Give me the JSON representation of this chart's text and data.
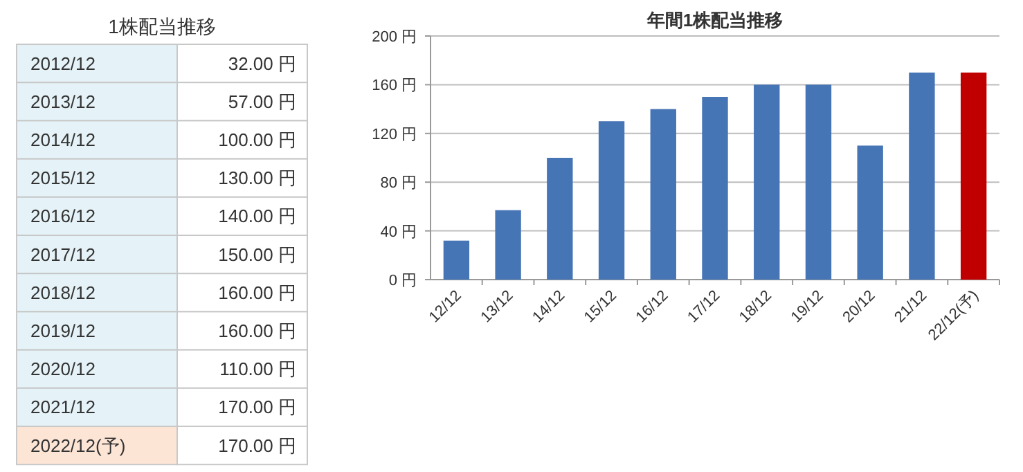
{
  "chart_data": [
    {
      "type": "other",
      "title": "1株配当推移",
      "categories": [
        "2012/12",
        "2013/12",
        "2014/12",
        "2015/12",
        "2016/12",
        "2017/12",
        "2018/12",
        "2019/12",
        "2020/12",
        "2021/12",
        "2022/12(予)"
      ],
      "values": [
        32,
        57,
        100,
        130,
        140,
        150,
        160,
        160,
        110,
        170,
        170
      ],
      "value_labels": [
        "32.00 円",
        "57.00 円",
        "100.00 円",
        "130.00 円",
        "140.00 円",
        "150.00 円",
        "160.00 円",
        "160.00 円",
        "110.00 円",
        "170.00 円",
        "170.00 円"
      ]
    },
    {
      "type": "bar",
      "title": "年間1株配当推移",
      "categories": [
        "12/12",
        "13/12",
        "14/12",
        "15/12",
        "16/12",
        "17/12",
        "18/12",
        "19/12",
        "20/12",
        "21/12",
        "22/12(予)"
      ],
      "values": [
        32,
        57,
        100,
        130,
        140,
        150,
        160,
        160,
        110,
        170,
        170
      ],
      "colors": [
        "#4675b6",
        "#4675b6",
        "#4675b6",
        "#4675b6",
        "#4675b6",
        "#4675b6",
        "#4675b6",
        "#4675b6",
        "#4675b6",
        "#4675b6",
        "#c00000"
      ],
      "ylim": [
        0,
        200
      ],
      "yticks": [
        {
          "value": 0,
          "label": "0 円"
        },
        {
          "value": 40,
          "label": "40 円"
        },
        {
          "value": 80,
          "label": "80 円"
        },
        {
          "value": 120,
          "label": "120 円"
        },
        {
          "value": 160,
          "label": "160 円"
        },
        {
          "value": 200,
          "label": "200 円"
        }
      ],
      "grid": "y",
      "legend": false
    }
  ]
}
